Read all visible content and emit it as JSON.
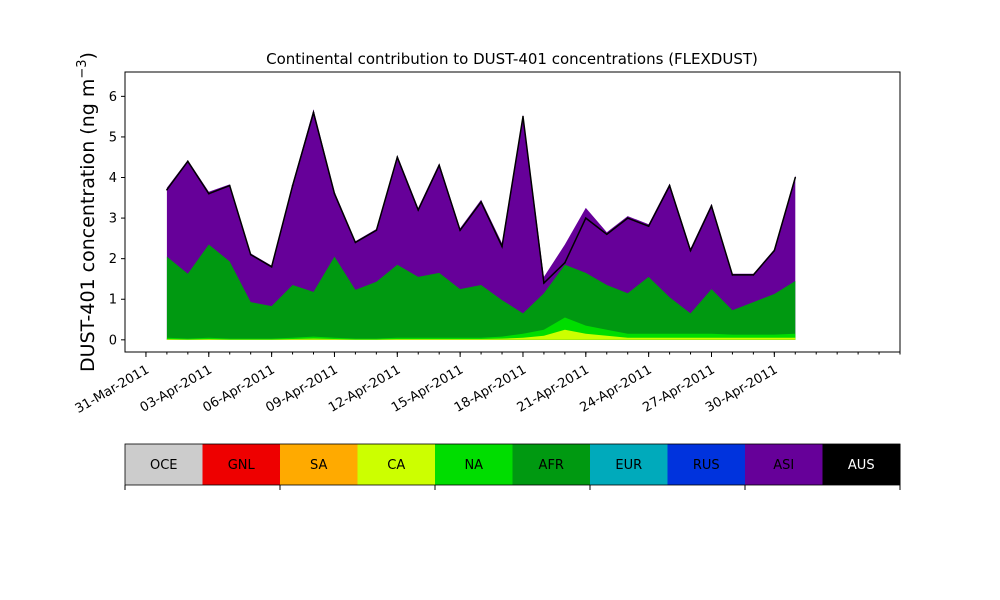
{
  "chart_data": {
    "type": "area",
    "title": "Continental contribution to DUST-401 concentrations (FLEXDUST)",
    "ylabel": "DUST-401 concentration (ng m",
    "ylabel_sup": "−3",
    "ylabel_close": ")",
    "xlabel": "",
    "ylim": [
      -0.3,
      6.6
    ],
    "xlim": [
      "2011-03-30",
      "2011-05-06"
    ],
    "yticks": [
      0,
      1,
      2,
      3,
      4,
      5,
      6
    ],
    "xticks": [
      "31-Mar-2011",
      "03-Apr-2011",
      "06-Apr-2011",
      "09-Apr-2011",
      "12-Apr-2011",
      "15-Apr-2011",
      "18-Apr-2011",
      "21-Apr-2011",
      "24-Apr-2011",
      "27-Apr-2011",
      "30-Apr-2011"
    ],
    "xtick_dates": [
      "2011-03-31",
      "2011-04-03",
      "2011-04-06",
      "2011-04-09",
      "2011-04-12",
      "2011-04-15",
      "2011-04-18",
      "2011-04-21",
      "2011-04-24",
      "2011-04-27",
      "2011-04-30"
    ],
    "grid": false,
    "stack_order": [
      "OCE",
      "GNL",
      "SA",
      "CA",
      "NA",
      "AFR",
      "EUR",
      "RUS",
      "ASI",
      "AUS"
    ],
    "dates": [
      "2011-04-01",
      "2011-04-02",
      "2011-04-03",
      "2011-04-04",
      "2011-04-05",
      "2011-04-06",
      "2011-04-07",
      "2011-04-08",
      "2011-04-09",
      "2011-04-10",
      "2011-04-11",
      "2011-04-12",
      "2011-04-13",
      "2011-04-14",
      "2011-04-15",
      "2011-04-16",
      "2011-04-17",
      "2011-04-18",
      "2011-04-19",
      "2011-04-20",
      "2011-04-21",
      "2011-04-22",
      "2011-04-23",
      "2011-04-24",
      "2011-04-25",
      "2011-04-26",
      "2011-04-27",
      "2011-04-28",
      "2011-04-29",
      "2011-04-30",
      "2011-05-01"
    ],
    "total": [
      3.7,
      4.4,
      3.6,
      3.8,
      2.1,
      1.8,
      3.8,
      5.6,
      3.6,
      2.4,
      2.7,
      4.5,
      3.2,
      4.3,
      2.7,
      3.4,
      2.3,
      5.5,
      1.4,
      1.9,
      3.0,
      2.6,
      3.0,
      2.8,
      3.8,
      2.2,
      3.3,
      1.6,
      1.6,
      2.2,
      4.0
    ],
    "series": [
      {
        "name": "AFR",
        "values": [
          2.0,
          1.6,
          2.3,
          1.9,
          0.9,
          0.8,
          1.3,
          1.1,
          2.0,
          1.2,
          1.4,
          1.8,
          1.5,
          1.6,
          1.2,
          1.3,
          0.9,
          0.5,
          0.9,
          1.3,
          1.3,
          1.1,
          1.0,
          1.4,
          0.9,
          0.5,
          1.1,
          0.6,
          0.8,
          1.0,
          1.3
        ]
      },
      {
        "name": "ASI",
        "values": [
          1.7,
          2.8,
          1.3,
          1.9,
          1.2,
          1.0,
          2.5,
          4.5,
          1.6,
          1.2,
          1.3,
          2.7,
          1.7,
          2.7,
          1.5,
          2.1,
          1.4,
          4.9,
          0.4,
          0.5,
          1.6,
          1.3,
          1.9,
          1.3,
          2.8,
          1.6,
          2.1,
          0.9,
          0.7,
          1.1,
          2.6
        ]
      },
      {
        "name": "NA",
        "values": [
          0.03,
          0.02,
          0.03,
          0.02,
          0.02,
          0.02,
          0.03,
          0.05,
          0.03,
          0.02,
          0.02,
          0.03,
          0.03,
          0.03,
          0.03,
          0.03,
          0.05,
          0.1,
          0.15,
          0.3,
          0.2,
          0.15,
          0.1,
          0.1,
          0.1,
          0.1,
          0.1,
          0.08,
          0.08,
          0.08,
          0.1
        ]
      },
      {
        "name": "CA",
        "values": [
          0.02,
          0.01,
          0.02,
          0.01,
          0.01,
          0.01,
          0.02,
          0.03,
          0.02,
          0.01,
          0.01,
          0.02,
          0.02,
          0.02,
          0.02,
          0.02,
          0.03,
          0.05,
          0.1,
          0.25,
          0.15,
          0.1,
          0.05,
          0.05,
          0.05,
          0.05,
          0.05,
          0.05,
          0.05,
          0.05,
          0.05
        ]
      }
    ],
    "legend": [
      {
        "label": "OCE",
        "color": "#cccccc",
        "text_color": "#000000"
      },
      {
        "label": "GNL",
        "color": "#ee0000",
        "text_color": "#000000"
      },
      {
        "label": "SA",
        "color": "#ffaa00",
        "text_color": "#000000"
      },
      {
        "label": "CA",
        "color": "#ccff00",
        "text_color": "#000000"
      },
      {
        "label": "NA",
        "color": "#00dd00",
        "text_color": "#000000"
      },
      {
        "label": "AFR",
        "color": "#009911",
        "text_color": "#000000"
      },
      {
        "label": "EUR",
        "color": "#00aabb",
        "text_color": "#000000"
      },
      {
        "label": "RUS",
        "color": "#0033dd",
        "text_color": "#000000"
      },
      {
        "label": "ASI",
        "color": "#660099",
        "text_color": "#000000"
      },
      {
        "label": "AUS",
        "color": "#000000",
        "text_color": "#ffffff"
      }
    ],
    "legend_placement": "bottom"
  }
}
